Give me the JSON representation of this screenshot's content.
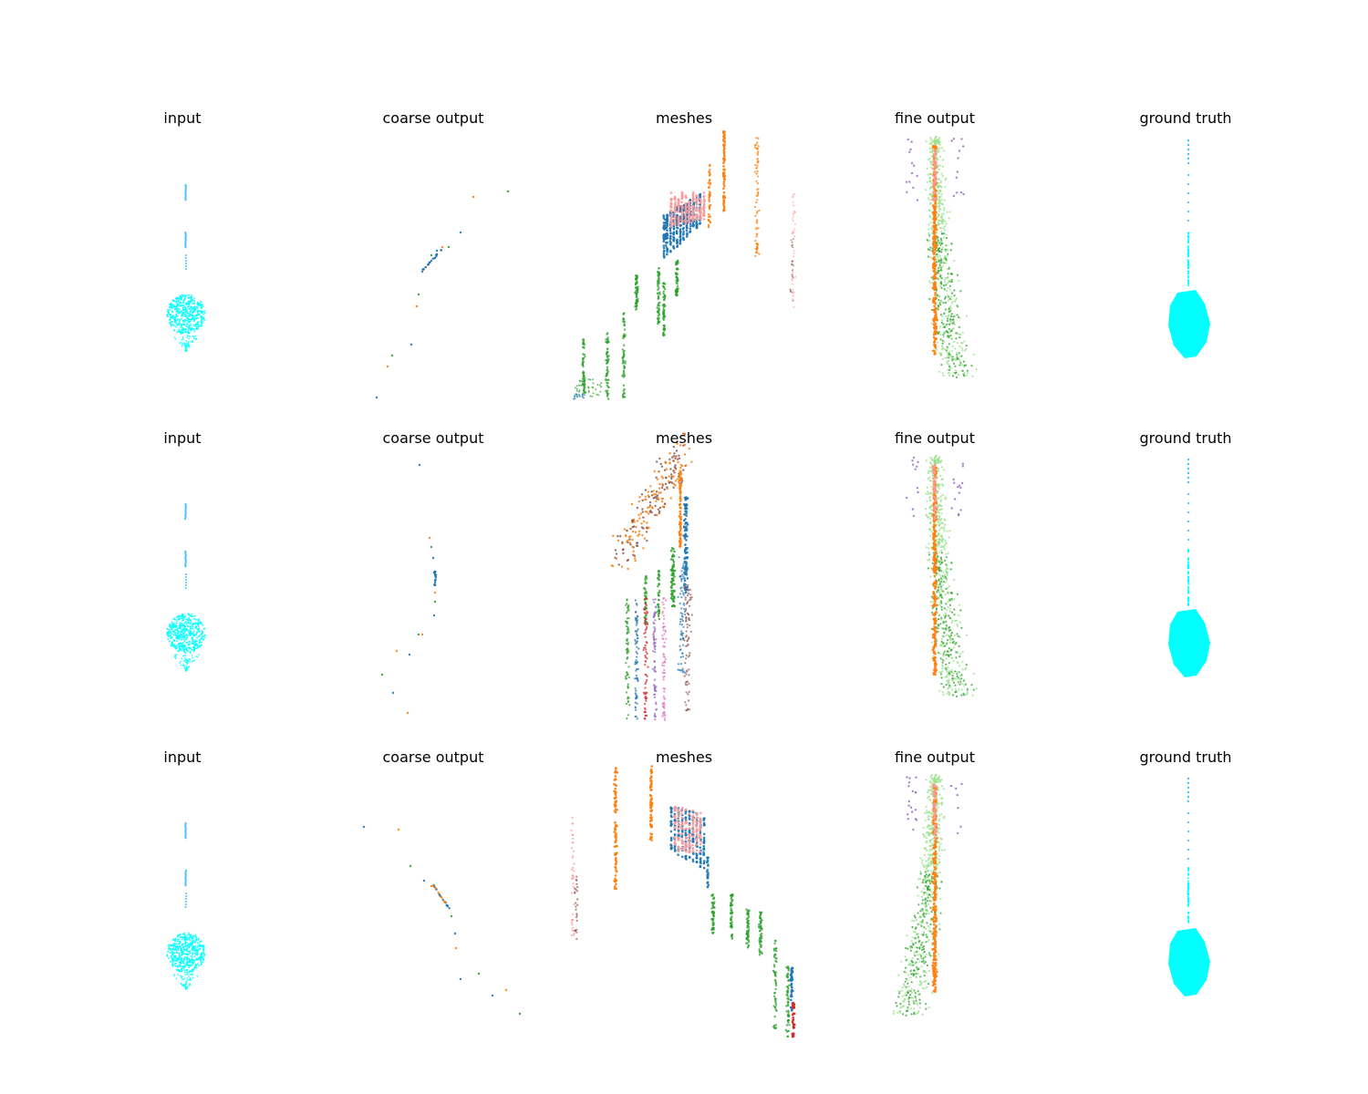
{
  "chart_data": {
    "type": "scatter",
    "layout": "3 rows x 5 columns of 3D point-cloud panels, axes hidden",
    "axes_visible": false,
    "grid": false,
    "legend": "none",
    "panel_titles": [
      "input",
      "coarse output",
      "meshes",
      "fine output",
      "ground truth"
    ],
    "colors": {
      "input": "#00ffff",
      "ground_truth": "#00ffff",
      "palette": [
        "#1f77b4",
        "#ff7f0e",
        "#2ca02c",
        "#d62728",
        "#9467bd",
        "#8c564b",
        "#e377c2",
        "#98df8a",
        "#ff9896",
        "#ffbb78",
        "#aec7e8"
      ]
    }
  }
}
